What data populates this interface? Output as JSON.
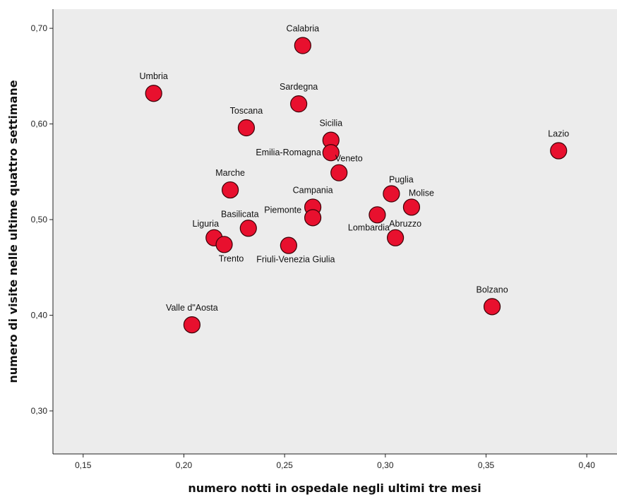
{
  "chart_data": {
    "type": "scatter",
    "xlabel": "numero notti in ospedale negli ultimi tre mesi",
    "ylabel": "numero di visite nelle ultime quattro settimane",
    "xlim": [
      0.135,
      0.415
    ],
    "ylim": [
      0.255,
      0.72
    ],
    "x_ticks": [
      0.15,
      0.2,
      0.25,
      0.3,
      0.35,
      0.4
    ],
    "x_tick_labels": [
      "0,15",
      "0,20",
      "0,25",
      "0,30",
      "0,35",
      "0,40"
    ],
    "y_ticks": [
      0.3,
      0.4,
      0.5,
      0.6,
      0.7
    ],
    "y_tick_labels": [
      "0,30",
      "0,40",
      "0,50",
      "0,60",
      "0,70"
    ],
    "grid": false,
    "background": "#ececec",
    "marker_color": "#e8102e",
    "marker_edge": "#3a0006",
    "points": [
      {
        "label": "Calabria",
        "x": 0.259,
        "y": 0.682,
        "lpos": "above"
      },
      {
        "label": "Umbria",
        "x": 0.185,
        "y": 0.632,
        "lpos": "above"
      },
      {
        "label": "Sardegna",
        "x": 0.257,
        "y": 0.621,
        "lpos": "above"
      },
      {
        "label": "Toscana",
        "x": 0.231,
        "y": 0.596,
        "lpos": "above"
      },
      {
        "label": "Sicilia",
        "x": 0.273,
        "y": 0.583,
        "lpos": "above"
      },
      {
        "label": "Emilia-Romagna",
        "x": 0.273,
        "y": 0.57,
        "lpos": "left"
      },
      {
        "label": "Lazio",
        "x": 0.386,
        "y": 0.572,
        "lpos": "above"
      },
      {
        "label": "Veneto",
        "x": 0.277,
        "y": 0.549,
        "lpos": "above-right"
      },
      {
        "label": "Marche",
        "x": 0.223,
        "y": 0.531,
        "lpos": "above"
      },
      {
        "label": "Puglia",
        "x": 0.303,
        "y": 0.527,
        "lpos": "above-right"
      },
      {
        "label": "Campania",
        "x": 0.264,
        "y": 0.513,
        "lpos": "above"
      },
      {
        "label": "Molise",
        "x": 0.313,
        "y": 0.513,
        "lpos": "above-right"
      },
      {
        "label": "Piemonte",
        "x": 0.264,
        "y": 0.502,
        "lpos": "left-up"
      },
      {
        "label": "Lombardia",
        "x": 0.296,
        "y": 0.505,
        "lpos": "below-left"
      },
      {
        "label": "Basilicata",
        "x": 0.232,
        "y": 0.491,
        "lpos": "above-left"
      },
      {
        "label": "Abruzzo",
        "x": 0.305,
        "y": 0.481,
        "lpos": "above-right"
      },
      {
        "label": "Liguria",
        "x": 0.215,
        "y": 0.481,
        "lpos": "above-left"
      },
      {
        "label": "Trento",
        "x": 0.22,
        "y": 0.474,
        "lpos": "below-right"
      },
      {
        "label": "Friuli-Venezia Giulia",
        "x": 0.252,
        "y": 0.473,
        "lpos": "below-right"
      },
      {
        "label": "Bolzano",
        "x": 0.353,
        "y": 0.409,
        "lpos": "above"
      },
      {
        "label": "Valle d\"Aosta",
        "x": 0.204,
        "y": 0.39,
        "lpos": "above"
      }
    ]
  }
}
